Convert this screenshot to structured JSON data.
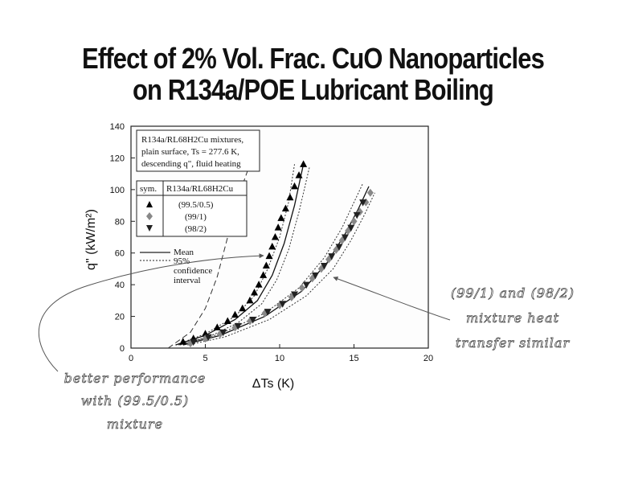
{
  "slide": {
    "title_line1": "Effect of 2% Vol. Frac. CuO Nanoparticles",
    "title_line2": "on R134a/POE Lubricant Boiling"
  },
  "chart_data": {
    "type": "scatter",
    "title": "",
    "xlabel": "ΔTs (K)",
    "ylabel": "q\" (kW/m²)",
    "xlim": [
      0,
      20
    ],
    "ylim": [
      0,
      140
    ],
    "x_ticks": [
      0,
      5,
      10,
      15,
      20
    ],
    "y_ticks": [
      0,
      20,
      40,
      60,
      80,
      100,
      120,
      140
    ],
    "grid": false,
    "info_box": {
      "line1": "R134a/RL68H2Cu mixtures,",
      "line2": "plain surface, Ts = 277.6 K,",
      "line3": "descending q\", fluid heating"
    },
    "legend": {
      "placement": "top-left",
      "header_sym": "sym.",
      "header_mix": "R134a/RL68H2Cu",
      "mean_label": "Mean",
      "ci_label_1": "95%",
      "ci_label_2": "confidence",
      "ci_label_3": "interval"
    },
    "series": [
      {
        "name": "(99.5/0.5)",
        "marker": "triangle-up",
        "color": "#000000",
        "x": [
          3.5,
          4.2,
          5.0,
          5.8,
          6.5,
          7.0,
          7.5,
          8.0,
          8.3,
          8.6,
          8.9,
          9.1,
          9.3,
          9.5,
          9.7,
          9.9,
          10.1,
          10.4,
          10.7,
          11.0,
          11.3,
          11.6
        ],
        "y": [
          4,
          6,
          9,
          13,
          17,
          21,
          25,
          30,
          35,
          40,
          46,
          52,
          58,
          64,
          70,
          76,
          82,
          88,
          95,
          102,
          109,
          116
        ]
      },
      {
        "name": "(99/1)",
        "marker": "diamond",
        "color": "#888888",
        "x": [
          4.0,
          5.0,
          6.0,
          7.0,
          8.0,
          9.0,
          10.0,
          10.8,
          11.5,
          12.2,
          12.8,
          13.3,
          13.8,
          14.2,
          14.6,
          15.0,
          15.4,
          15.8,
          16.1
        ],
        "y": [
          3,
          6,
          9,
          13,
          17,
          22,
          27,
          32,
          38,
          44,
          50,
          56,
          62,
          68,
          74,
          80,
          86,
          92,
          98
        ]
      },
      {
        "name": "(98/2)",
        "marker": "triangle-down",
        "color": "#222222",
        "x": [
          4.2,
          5.2,
          6.2,
          7.2,
          8.2,
          9.2,
          10.2,
          11.0,
          11.8,
          12.4,
          13.0,
          13.5,
          14.0,
          14.4,
          14.8,
          15.2,
          15.6
        ],
        "y": [
          4,
          7,
          10,
          14,
          18,
          23,
          28,
          34,
          40,
          46,
          52,
          58,
          64,
          70,
          76,
          84,
          92
        ]
      }
    ],
    "mean_curves": [
      {
        "name": "(99.5/0.5)",
        "x": [
          3,
          5,
          7,
          8.5,
          9.5,
          10.3,
          11,
          11.6
        ],
        "y": [
          2,
          8,
          18,
          30,
          46,
          66,
          90,
          116
        ]
      },
      {
        "name": "(99/1)",
        "x": [
          3.5,
          6,
          9,
          11.5,
          13.2,
          14.4,
          15.3,
          16
        ],
        "y": [
          2,
          8,
          20,
          36,
          54,
          72,
          88,
          102
        ]
      }
    ],
    "ci_curves": [
      {
        "x": [
          3,
          5,
          7,
          8.3,
          9.2,
          10.0,
          10.6,
          11.0
        ],
        "y": [
          2,
          9,
          20,
          33,
          50,
          70,
          92,
          116
        ]
      },
      {
        "x": [
          3.2,
          5.2,
          7.2,
          8.8,
          9.8,
          10.6,
          11.3,
          12.0
        ],
        "y": [
          2,
          7,
          16,
          28,
          43,
          62,
          86,
          114
        ]
      },
      {
        "x": [
          3.3,
          6,
          9,
          11.3,
          13.0,
          14.2,
          15.0,
          15.6
        ],
        "y": [
          2,
          9,
          22,
          38,
          57,
          76,
          92,
          104
        ]
      },
      {
        "x": [
          3.8,
          6.3,
          9.3,
          11.8,
          13.6,
          14.8,
          15.7,
          16.4
        ],
        "y": [
          2,
          7,
          18,
          33,
          50,
          68,
          84,
          98
        ]
      }
    ],
    "outer_dashed": {
      "x": [
        2.5,
        4,
        5,
        5.8,
        6.5,
        7.2,
        8.0
      ],
      "y": [
        0,
        10,
        25,
        45,
        70,
        95,
        116
      ]
    }
  },
  "annotations": {
    "right_1": "(99/1) and (98/2)",
    "right_2": "mixture heat",
    "right_3": "transfer similar",
    "left_1": "better performance",
    "left_2": "with (99.5/0.5)",
    "left_3": "mixture"
  }
}
